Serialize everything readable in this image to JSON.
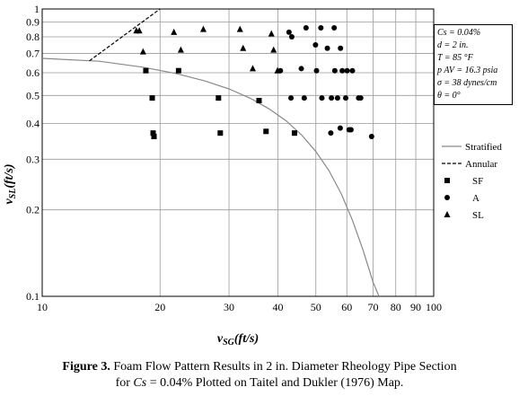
{
  "chart_data": {
    "type": "scatter",
    "xscale": "log",
    "yscale": "log",
    "xlim": [
      10,
      100
    ],
    "ylim": [
      0.1,
      1
    ],
    "x_ticks": [
      10,
      20,
      30,
      40,
      50,
      60,
      70,
      80,
      90,
      100
    ],
    "x_tick_labels": [
      "10",
      "20",
      "30",
      "40",
      "50",
      "60",
      "70",
      "80",
      "90",
      "100"
    ],
    "y_ticks": [
      0.1,
      0.2,
      0.3,
      0.4,
      0.5,
      0.6,
      0.7,
      0.8,
      0.9,
      1
    ],
    "y_tick_labels": [
      "0.1",
      "0.2",
      "0.3",
      "0.4",
      "0.5",
      "0.6",
      "0.7",
      "0.8",
      "0.9",
      "1"
    ],
    "xlabel": {
      "main": "v",
      "sub": "SG",
      "unit": "(ft/s)"
    },
    "ylabel": {
      "main": "v",
      "sub": "SL",
      "unit": "(ft/s)"
    },
    "grid": true,
    "legend_position": "right",
    "series": [
      {
        "name": "Stratified",
        "kind": "line",
        "style": "solid",
        "color": "#888888",
        "x": [
          10,
          14,
          18,
          22,
          26,
          30,
          34,
          38,
          42,
          46,
          50,
          54,
          58,
          62,
          66,
          70,
          72.5
        ],
        "y": [
          0.673,
          0.658,
          0.628,
          0.596,
          0.562,
          0.527,
          0.489,
          0.449,
          0.408,
          0.364,
          0.319,
          0.274,
          0.228,
          0.184,
          0.145,
          0.112,
          0.1
        ]
      },
      {
        "name": "Annular",
        "kind": "line",
        "style": "dashed",
        "color": "#000000",
        "x": [
          13.2,
          20
        ],
        "y": [
          0.66,
          1
        ]
      },
      {
        "name": "SF",
        "kind": "scatter",
        "marker": "square",
        "x": [
          18.4,
          19.1,
          19.2,
          19.3,
          22.3,
          28.2,
          28.5,
          35.8,
          37.3,
          44.1
        ],
        "y": [
          0.61,
          0.49,
          0.37,
          0.36,
          0.61,
          0.49,
          0.37,
          0.48,
          0.375,
          0.37
        ]
      },
      {
        "name": "A",
        "kind": "scatter",
        "marker": "circle",
        "x": [
          42.7,
          43.4,
          45.9,
          47.2,
          49.9,
          51.5,
          51.8,
          53.5,
          54.6,
          55.9,
          55.7,
          56.8,
          57.8,
          57.7,
          58.4,
          59.6,
          60.1,
          60.8,
          62.0,
          61.5,
          65.1,
          64.3,
          69.4,
          40.6,
          43.2,
          46.7,
          50.2,
          54.8
        ],
        "y": [
          0.83,
          0.8,
          0.62,
          0.86,
          0.75,
          0.86,
          0.49,
          0.73,
          0.37,
          0.61,
          0.86,
          0.49,
          0.73,
          0.385,
          0.61,
          0.49,
          0.61,
          0.38,
          0.61,
          0.38,
          0.49,
          0.49,
          0.36,
          0.61,
          0.49,
          0.49,
          0.61,
          0.49
        ]
      },
      {
        "name": "SL",
        "kind": "scatter",
        "marker": "triangle",
        "x": [
          17.7,
          18.1,
          22.6,
          21.7,
          25.8,
          32.0,
          32.6,
          34.5,
          38.5,
          39.0,
          39.9,
          17.4
        ],
        "y": [
          0.84,
          0.71,
          0.72,
          0.83,
          0.85,
          0.85,
          0.73,
          0.62,
          0.82,
          0.72,
          0.61,
          0.84
        ]
      }
    ],
    "conditions": [
      {
        "label": "Cs = 0.04%"
      },
      {
        "label": "d = 2 in."
      },
      {
        "label": "T = 85 °F"
      },
      {
        "label": "p AV = 16.3 psia"
      },
      {
        "label": "σ = 38 dynes/cm"
      },
      {
        "label": "θ = 0°"
      }
    ]
  },
  "caption": {
    "bold": "Figure 3.",
    "text1": " Foam Flow Pattern Results in 2 in. Diameter Rheology Pipe Section",
    "text2_pre": "for ",
    "text2_cs": "Cs",
    "text2_post": " = 0.04% Plotted on Taitel and Dukler (1976) Map."
  },
  "legend": {
    "stratified": "Stratified",
    "annular": "Annular",
    "sf": "SF",
    "a": "A",
    "sl": "SL"
  }
}
